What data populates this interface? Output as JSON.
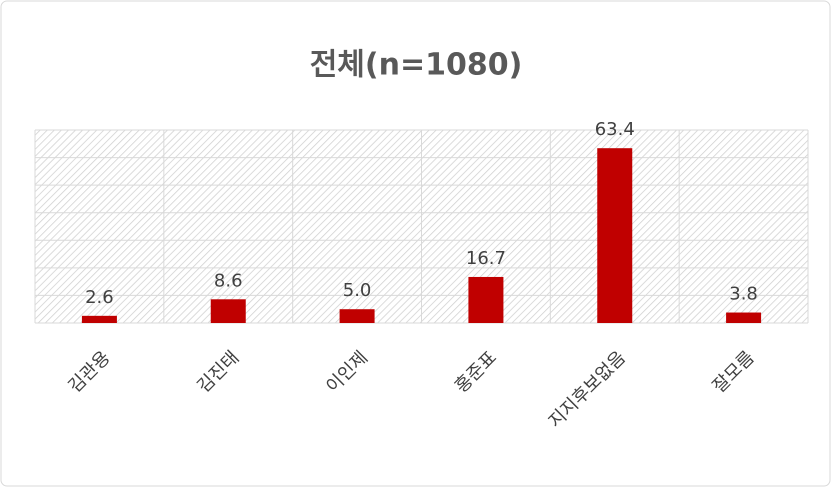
{
  "chart_data": {
    "type": "bar",
    "title": "전체(n=1080)",
    "categories": [
      "김관용",
      "김진태",
      "이인제",
      "홍준표",
      "지지후보없음",
      "잘모름"
    ],
    "values": [
      2.6,
      8.6,
      5.0,
      16.7,
      63.4,
      3.8
    ],
    "value_labels": [
      "2.6",
      "8.6",
      "5.0",
      "16.7",
      "63.4",
      "3.8"
    ],
    "color": "#c00000",
    "ylim": [
      0,
      70
    ],
    "yticks": [
      0,
      10,
      20,
      30,
      40,
      50,
      60,
      70
    ],
    "grid": true
  }
}
